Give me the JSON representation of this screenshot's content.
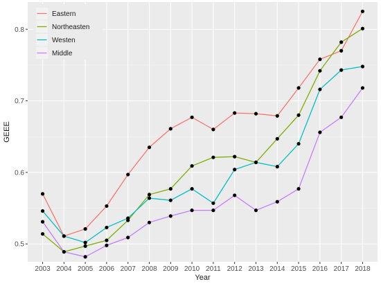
{
  "chart_data": {
    "type": "line",
    "xlabel": "Year",
    "ylabel": "GEEE",
    "x": [
      2003,
      2004,
      2005,
      2006,
      2007,
      2008,
      2009,
      2010,
      2011,
      2012,
      2013,
      2014,
      2015,
      2016,
      2017,
      2018
    ],
    "xlim": [
      2002.3,
      2018.7
    ],
    "ylim": [
      0.475,
      0.838
    ],
    "yticks": [
      0.5,
      0.6,
      0.7,
      0.8
    ],
    "ytick_labels": [
      "0.5",
      "0.6",
      "0.7",
      "0.8"
    ],
    "grid": true,
    "legend_position": "top-left",
    "series": [
      {
        "name": "Eastern",
        "color": "#F8766D",
        "values": [
          0.57,
          0.511,
          0.521,
          0.553,
          0.597,
          0.635,
          0.661,
          0.677,
          0.66,
          0.683,
          0.682,
          0.679,
          0.718,
          0.758,
          0.77,
          0.825
        ]
      },
      {
        "name": "Northeasten",
        "color": "#7CAE00",
        "values": [
          0.514,
          0.489,
          0.497,
          0.505,
          0.533,
          0.569,
          0.577,
          0.609,
          0.621,
          0.622,
          0.614,
          0.647,
          0.68,
          0.742,
          0.782,
          0.801
        ]
      },
      {
        "name": "Westen",
        "color": "#00BFC4",
        "values": [
          0.546,
          0.511,
          0.502,
          0.523,
          0.536,
          0.564,
          0.561,
          0.577,
          0.557,
          0.604,
          0.614,
          0.608,
          0.64,
          0.716,
          0.743,
          0.748
        ]
      },
      {
        "name": "Middle",
        "color": "#C77CFF",
        "values": [
          0.531,
          0.489,
          0.482,
          0.498,
          0.509,
          0.53,
          0.539,
          0.547,
          0.547,
          0.568,
          0.547,
          0.559,
          0.577,
          0.656,
          0.677,
          0.718
        ]
      }
    ]
  }
}
